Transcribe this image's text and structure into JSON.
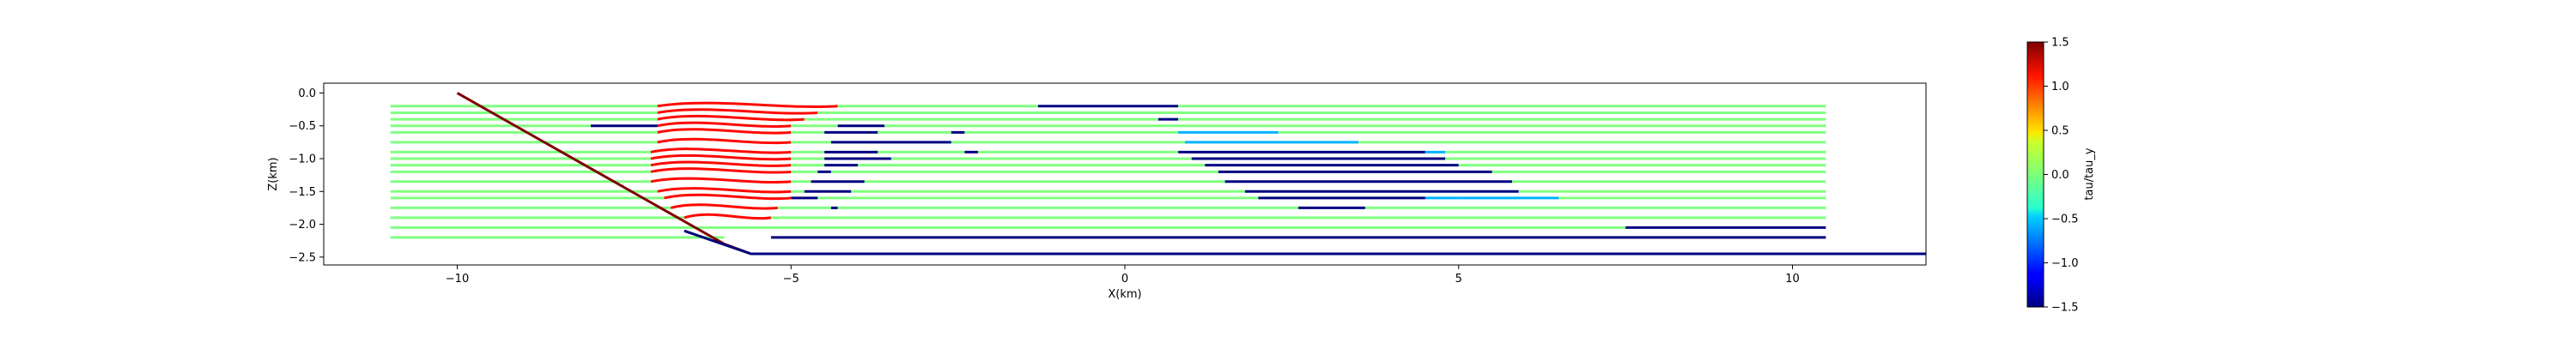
{
  "chart_data": {
    "type": "line",
    "title": "",
    "xlabel": "X(km)",
    "ylabel": "Z(km)",
    "xlim": [
      -12,
      12
    ],
    "ylim": [
      -2.62,
      0.15
    ],
    "grid": false,
    "x_ticks": [
      {
        "value": -10,
        "label": "−10"
      },
      {
        "value": -5,
        "label": "−5"
      },
      {
        "value": 0,
        "label": "0"
      },
      {
        "value": 5,
        "label": "5"
      },
      {
        "value": 10,
        "label": "10"
      }
    ],
    "y_ticks": [
      {
        "value": 0,
        "label": "0.0"
      },
      {
        "value": -0.5,
        "label": "−0.5"
      },
      {
        "value": -1,
        "label": "−1.0"
      },
      {
        "value": -1.5,
        "label": "−1.5"
      },
      {
        "value": -2,
        "label": "−2.0"
      },
      {
        "value": -2.5,
        "label": "−2.5"
      }
    ],
    "colorbar": {
      "label": "tau/tau_y",
      "range": [
        -1.5,
        1.5
      ],
      "colormap": "jet",
      "ticks": [
        {
          "value": 1.5,
          "label": "1.5"
        },
        {
          "value": 1,
          "label": "1.0"
        },
        {
          "value": 0.5,
          "label": "0.5"
        },
        {
          "value": 0,
          "label": "0.0"
        },
        {
          "value": -0.5,
          "label": "−0.5"
        },
        {
          "value": -1,
          "label": "−1.0"
        },
        {
          "value": -1.5,
          "label": "−1.5"
        }
      ]
    },
    "boundary": {
      "slope": {
        "x": [
          -10,
          -6.0,
          -5.6
        ],
        "z": [
          0,
          -2.3,
          -2.45
        ],
        "color": "#7f0000"
      },
      "floor": {
        "x": [
          -6.6,
          -5.6,
          12
        ],
        "z": [
          -2.1,
          -2.45,
          -2.45
        ],
        "color": "#00007f"
      }
    },
    "lines": [
      {
        "z": -0.2,
        "segs": [
          [
            -11,
            -7.0,
            0
          ],
          [
            -7.0,
            -4.3,
            1.1
          ],
          [
            -4.3,
            -1.3,
            0
          ],
          [
            -1.3,
            0.8,
            -1.5
          ],
          [
            0.8,
            10.5,
            0
          ]
        ]
      },
      {
        "z": -0.3,
        "segs": [
          [
            -11,
            -7.0,
            0
          ],
          [
            -7.0,
            -4.6,
            1.1
          ],
          [
            -4.6,
            10.5,
            0
          ]
        ]
      },
      {
        "z": -0.4,
        "segs": [
          [
            -11,
            -7.0,
            0
          ],
          [
            -7.0,
            -4.8,
            1.1
          ],
          [
            -4.8,
            0.5,
            0
          ],
          [
            0.5,
            0.8,
            -1.5
          ],
          [
            0.8,
            10.5,
            0
          ]
        ]
      },
      {
        "z": -0.5,
        "segs": [
          [
            -11,
            -8.0,
            0
          ],
          [
            -8.0,
            -7.0,
            -1.5
          ],
          [
            -7.0,
            -5.0,
            1.1
          ],
          [
            -5.0,
            -4.3,
            0
          ],
          [
            -4.3,
            -3.6,
            -1.5
          ],
          [
            -3.6,
            10.5,
            0
          ]
        ]
      },
      {
        "z": -0.6,
        "segs": [
          [
            -11,
            -7.0,
            0
          ],
          [
            -7.0,
            -5.0,
            1.1
          ],
          [
            -5.0,
            -4.5,
            0
          ],
          [
            -4.5,
            -3.7,
            -1.5
          ],
          [
            -3.7,
            -2.6,
            0
          ],
          [
            -2.6,
            -2.4,
            -1.5
          ],
          [
            -2.4,
            0.8,
            0
          ],
          [
            0.8,
            2.3,
            -0.6
          ],
          [
            2.3,
            10.5,
            0
          ]
        ]
      },
      {
        "z": -0.75,
        "segs": [
          [
            -11,
            -7.0,
            0
          ],
          [
            -7.0,
            -5.0,
            1.1
          ],
          [
            -5.0,
            -4.4,
            0
          ],
          [
            -4.4,
            -2.6,
            -1.5
          ],
          [
            -2.6,
            0.9,
            0
          ],
          [
            0.9,
            3.5,
            -0.6
          ],
          [
            3.5,
            10.5,
            0
          ]
        ]
      },
      {
        "z": -0.9,
        "segs": [
          [
            -11,
            -7.1,
            0
          ],
          [
            -7.1,
            -5.0,
            1.1
          ],
          [
            -5.0,
            -4.5,
            0
          ],
          [
            -4.5,
            -3.7,
            -1.5
          ],
          [
            -3.7,
            -2.4,
            0
          ],
          [
            -2.4,
            -2.2,
            -1.5
          ],
          [
            -2.2,
            0.8,
            0
          ],
          [
            0.8,
            4.5,
            -1.5
          ],
          [
            4.5,
            4.8,
            -0.6
          ],
          [
            4.8,
            10.5,
            0
          ]
        ]
      },
      {
        "z": -1.0,
        "segs": [
          [
            -11,
            -7.1,
            0
          ],
          [
            -7.1,
            -5.0,
            1.1
          ],
          [
            -5.0,
            -4.5,
            0
          ],
          [
            -4.5,
            -3.5,
            -1.5
          ],
          [
            -3.5,
            1.0,
            0
          ],
          [
            1.0,
            4.8,
            -1.5
          ],
          [
            4.8,
            10.5,
            0
          ]
        ]
      },
      {
        "z": -1.1,
        "segs": [
          [
            -11,
            -7.1,
            0
          ],
          [
            -7.1,
            -5.0,
            1.1
          ],
          [
            -5.0,
            -4.5,
            0
          ],
          [
            -4.5,
            -4.0,
            -1.5
          ],
          [
            -4.0,
            1.2,
            0
          ],
          [
            1.2,
            5.0,
            -1.5
          ],
          [
            5.0,
            10.5,
            0
          ]
        ]
      },
      {
        "z": -1.2,
        "segs": [
          [
            -11,
            -7.1,
            0
          ],
          [
            -7.1,
            -5.0,
            1.1
          ],
          [
            -5.0,
            -4.6,
            0
          ],
          [
            -4.6,
            -4.4,
            -1.5
          ],
          [
            -4.4,
            1.4,
            0
          ],
          [
            1.4,
            5.5,
            -1.5
          ],
          [
            5.5,
            10.5,
            0
          ]
        ]
      },
      {
        "z": -1.35,
        "segs": [
          [
            -11,
            -7.1,
            0
          ],
          [
            -7.1,
            -5.0,
            1.1
          ],
          [
            -5.0,
            -4.7,
            0
          ],
          [
            -4.7,
            -3.9,
            -1.5
          ],
          [
            -3.9,
            1.5,
            0
          ],
          [
            1.5,
            5.8,
            -1.5
          ],
          [
            5.8,
            10.5,
            0
          ]
        ]
      },
      {
        "z": -1.5,
        "segs": [
          [
            -11,
            -7.0,
            0
          ],
          [
            -7.0,
            -5.0,
            1.1
          ],
          [
            -5.0,
            -4.8,
            0
          ],
          [
            -4.8,
            -4.1,
            -1.5
          ],
          [
            -4.1,
            1.8,
            0
          ],
          [
            1.8,
            5.9,
            -1.5
          ],
          [
            5.9,
            10.5,
            0
          ]
        ]
      },
      {
        "z": -1.6,
        "segs": [
          [
            -11,
            -6.9,
            0
          ],
          [
            -6.9,
            -5.0,
            1.1
          ],
          [
            -5.0,
            -4.6,
            -1.5
          ],
          [
            -4.6,
            2.0,
            0
          ],
          [
            2.0,
            4.5,
            -1.5
          ],
          [
            4.5,
            5.0,
            -0.6
          ],
          [
            5.0,
            6.5,
            -0.6
          ],
          [
            6.5,
            10.5,
            0
          ]
        ]
      },
      {
        "z": -1.75,
        "segs": [
          [
            -11,
            -6.8,
            0
          ],
          [
            -6.8,
            -5.2,
            1.1
          ],
          [
            -5.2,
            -4.4,
            0
          ],
          [
            -4.4,
            -4.3,
            -1.5
          ],
          [
            -4.3,
            2.6,
            0
          ],
          [
            2.6,
            3.6,
            -1.5
          ],
          [
            3.6,
            10.5,
            0
          ]
        ]
      },
      {
        "z": -1.9,
        "segs": [
          [
            -11,
            -6.6,
            0
          ],
          [
            -6.6,
            -5.3,
            1.1
          ],
          [
            -5.3,
            10.5,
            0
          ]
        ]
      },
      {
        "z": -2.05,
        "segs": [
          [
            -11,
            -6.3,
            0
          ],
          [
            -6.3,
            7.5,
            0
          ],
          [
            7.5,
            10.5,
            -1.5
          ]
        ]
      },
      {
        "z": -2.2,
        "segs": [
          [
            -11,
            -6.0,
            0
          ],
          [
            -5.3,
            10.5,
            -1.5
          ]
        ]
      }
    ]
  }
}
